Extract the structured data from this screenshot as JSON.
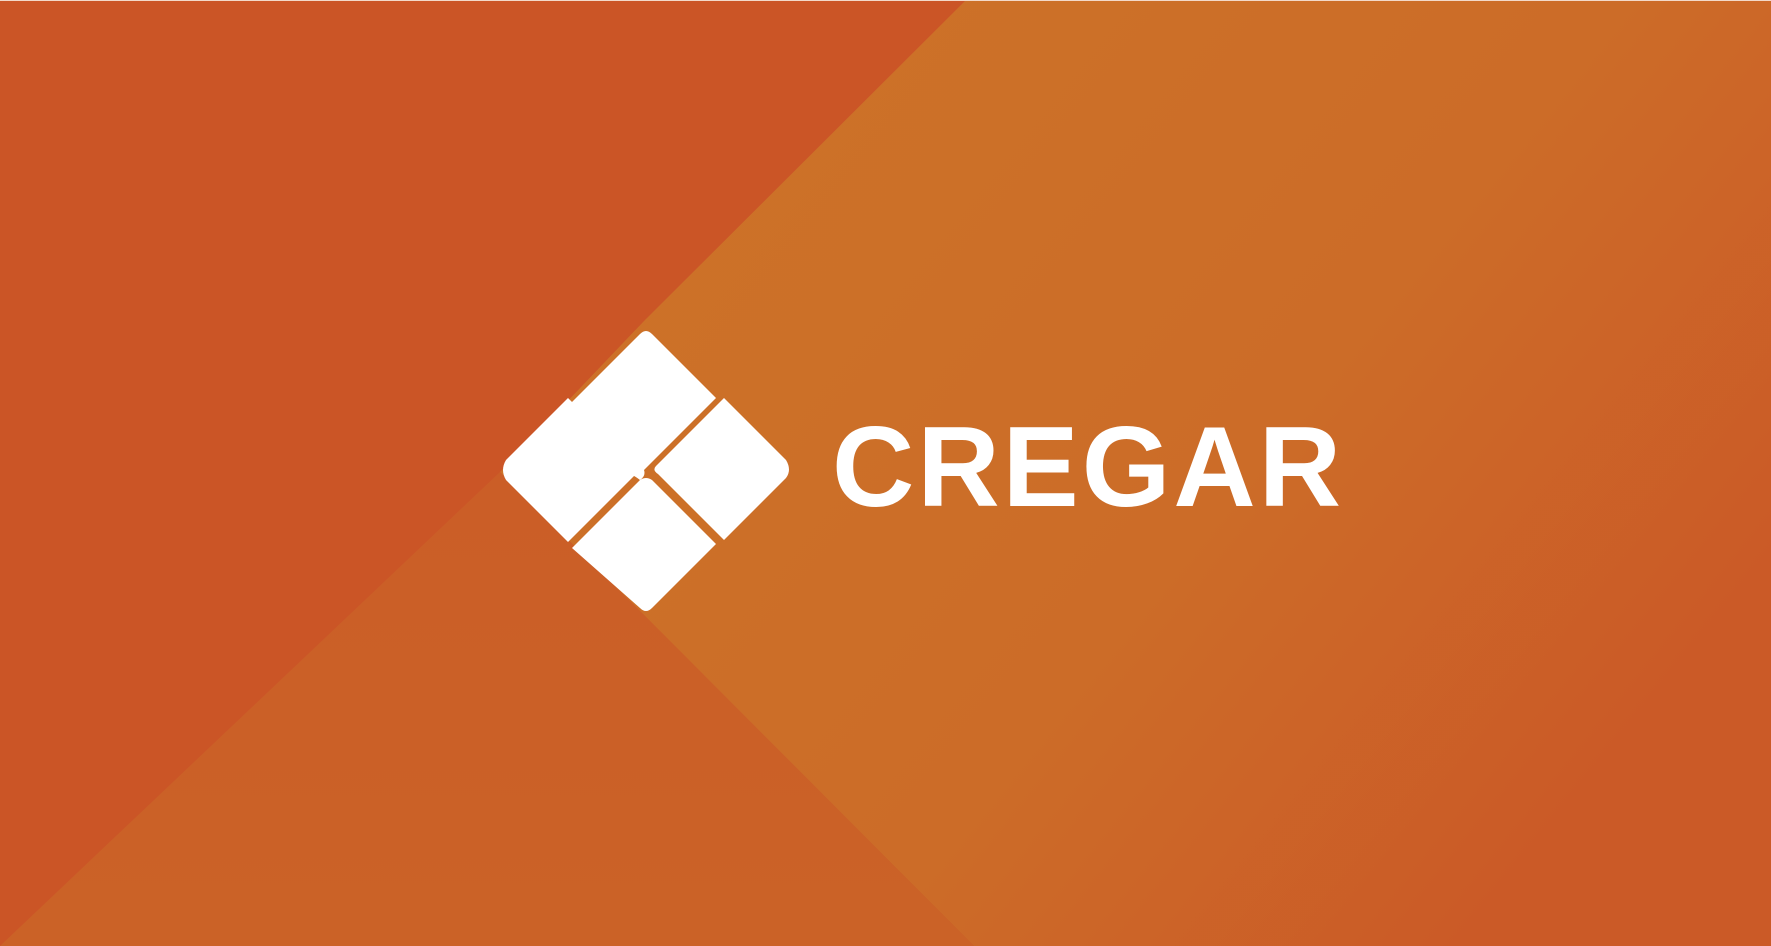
{
  "brand": {
    "name": "CREGAR",
    "logo_icon": "four-diamond-tiles-icon"
  },
  "colors": {
    "background_left": "#CB5526",
    "background_right": "#CC6F28",
    "background_right_edge": "#CB5927",
    "background_bottom": "#CB6127",
    "logo": "#FFFFFF"
  }
}
